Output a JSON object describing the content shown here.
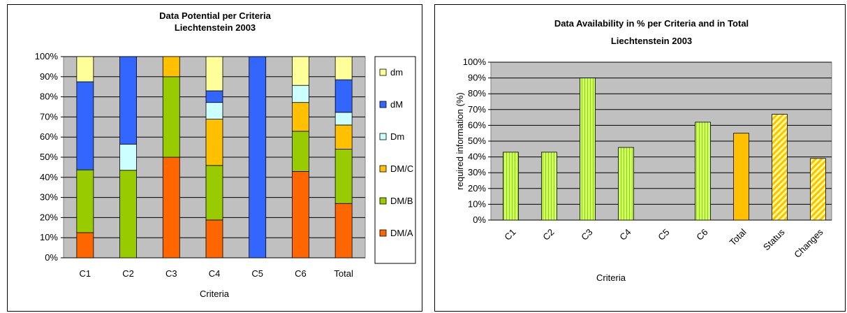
{
  "chart_data": [
    {
      "type": "bar",
      "stacked": true,
      "title": "Data Potential per Criteria",
      "subtitle": "Liechtenstein 2003",
      "xlabel": "Criteria",
      "ylabel": "",
      "ylim": [
        0,
        100
      ],
      "yticks": [
        "0%",
        "10%",
        "20%",
        "30%",
        "40%",
        "50%",
        "60%",
        "70%",
        "80%",
        "90%",
        "100%"
      ],
      "categories": [
        "C1",
        "C2",
        "C3",
        "C4",
        "C5",
        "C6",
        "Total"
      ],
      "legend_position": "right",
      "grid": true,
      "series": [
        {
          "name": "DM/A",
          "color": "#FF6600",
          "values": [
            12.5,
            0,
            50,
            18.8,
            0,
            42.9,
            27
          ]
        },
        {
          "name": "DM/B",
          "color": "#99CC00",
          "values": [
            31.2,
            43.5,
            40,
            27.1,
            0,
            20,
            27
          ]
        },
        {
          "name": "DM/C",
          "color": "#FFC000",
          "values": [
            0,
            0,
            10,
            23,
            0,
            14.3,
            12
          ]
        },
        {
          "name": "Dm",
          "color": "#CCFFFF",
          "values": [
            0,
            13,
            0,
            8.3,
            0,
            8.5,
            6.3
          ]
        },
        {
          "name": "dM",
          "color": "#3366FF",
          "values": [
            43.8,
            43.5,
            0,
            5.8,
            100,
            0,
            16.2
          ]
        },
        {
          "name": "dm",
          "color": "#FFFF99",
          "values": [
            12.5,
            0,
            0,
            17,
            0,
            14.3,
            11.5
          ]
        }
      ]
    },
    {
      "type": "bar",
      "title": "Data Availability in % per Criteria and in Total",
      "subtitle": "Liechtenstein 2003",
      "xlabel": "Criteria",
      "ylabel": "required information (%)",
      "ylim": [
        0,
        100
      ],
      "yticks": [
        "0%",
        "10%",
        "20%",
        "30%",
        "40%",
        "50%",
        "60%",
        "70%",
        "80%",
        "90%",
        "100%"
      ],
      "categories": [
        "C1",
        "C2",
        "C3",
        "C4",
        "C5",
        "C6",
        "Total",
        "Status",
        "Changes"
      ],
      "grid": true,
      "values": [
        43,
        43,
        90,
        46,
        0,
        62,
        55,
        67,
        39
      ],
      "bar_styles": [
        "vstripe-green",
        "vstripe-green",
        "vstripe-green",
        "vstripe-green",
        "vstripe-green",
        "vstripe-green",
        "solid-orange",
        "diag-orange",
        "diag-orange"
      ],
      "colors": {
        "green": "#CCFF66",
        "orange": "#FFC000",
        "plot_bg": "#C0C0C0"
      }
    }
  ]
}
